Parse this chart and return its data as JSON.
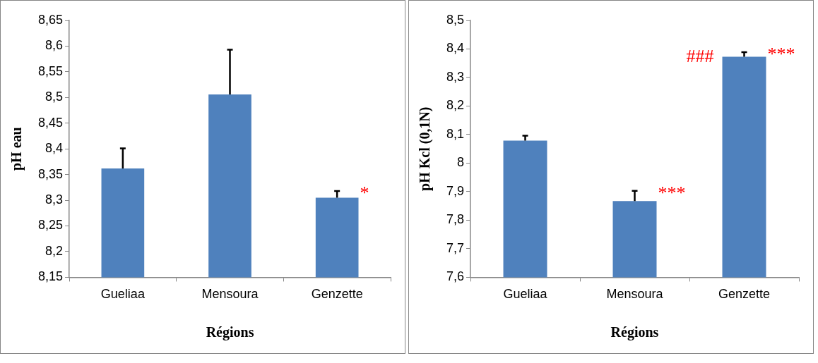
{
  "chart_data": [
    {
      "type": "bar",
      "xlabel": "Régions",
      "ylabel": "pH eau",
      "categories": [
        "Gueliaa",
        "Mensoura",
        "Genzette"
      ],
      "series": [
        {
          "color": "#4f81bd",
          "values": [
            8.362,
            8.506,
            8.305
          ],
          "errors": [
            [
              8.362,
              8.401
            ],
            [
              8.506,
              8.593
            ],
            [
              8.305,
              8.318
            ]
          ]
        }
      ],
      "ylim": [
        8.15,
        8.65
      ],
      "yticks": [
        {
          "value": 8.15,
          "label": "8,15"
        },
        {
          "value": 8.2,
          "label": "8,2"
        },
        {
          "value": 8.25,
          "label": "8,25"
        },
        {
          "value": 8.3,
          "label": "8,3"
        },
        {
          "value": 8.35,
          "label": "8,35"
        },
        {
          "value": 8.4,
          "label": "8,4"
        },
        {
          "value": 8.45,
          "label": "8,45"
        },
        {
          "value": 8.5,
          "label": "8,5"
        },
        {
          "value": 8.55,
          "label": "8,55"
        },
        {
          "value": 8.6,
          "label": "8,6"
        },
        {
          "value": 8.65,
          "label": "8,65"
        }
      ],
      "annotations": [
        {
          "text": "*",
          "x": "Genzette",
          "y": 8.318
        }
      ],
      "grid": false,
      "legend": false
    },
    {
      "type": "bar",
      "xlabel": "Régions",
      "ylabel": "pH Kcl (0,1N)",
      "categories": [
        "Gueliaa",
        "Mensoura",
        "Genzette"
      ],
      "series": [
        {
          "color": "#4f81bd",
          "values": [
            8.079,
            7.867,
            8.373
          ],
          "errors": [
            [
              8.079,
              8.096
            ],
            [
              7.867,
              7.903
            ],
            [
              8.373,
              8.389
            ]
          ]
        }
      ],
      "ylim": [
        7.6,
        8.5
      ],
      "yticks": [
        {
          "value": 7.6,
          "label": "7,6"
        },
        {
          "value": 7.7,
          "label": "7,7"
        },
        {
          "value": 7.8,
          "label": "7,8"
        },
        {
          "value": 7.9,
          "label": "7,9"
        },
        {
          "value": 8,
          "label": "8"
        },
        {
          "value": 8.1,
          "label": "8,1"
        },
        {
          "value": 8.2,
          "label": "8,2"
        },
        {
          "value": 8.3,
          "label": "8,3"
        },
        {
          "value": 8.4,
          "label": "8,4"
        },
        {
          "value": 8.5,
          "label": "8,5"
        }
      ],
      "annotations": [
        {
          "text": "###",
          "x": "Genzette",
          "y": 8.38
        },
        {
          "text": "***",
          "x": "Genzette",
          "y": 8.389
        },
        {
          "text": "***",
          "x": "Mensoura",
          "y": 7.903
        }
      ],
      "grid": false,
      "legend": false
    }
  ]
}
